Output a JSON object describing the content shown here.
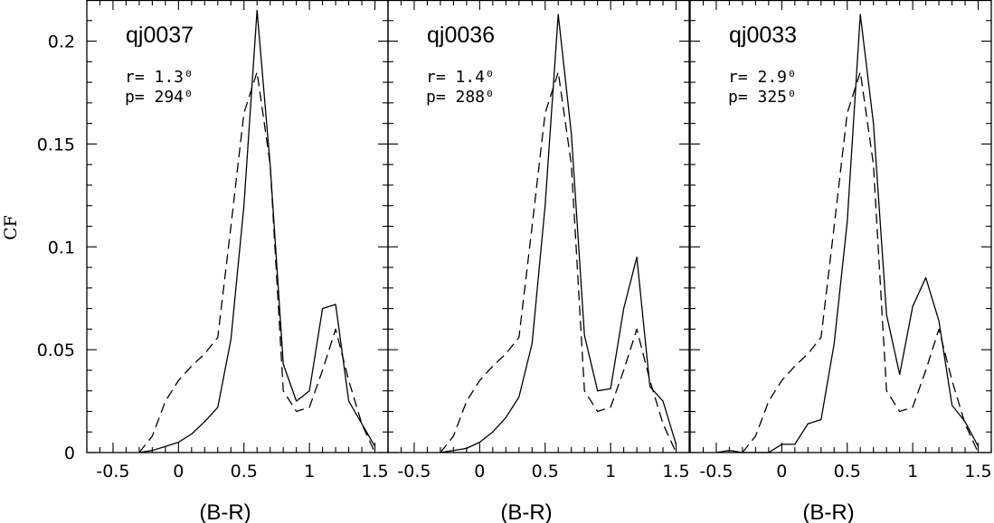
{
  "figure": {
    "ylabel": "CF",
    "xlabel": "(B-R)"
  },
  "chart_data": [
    {
      "type": "line",
      "title": "qj0037",
      "annotations": [
        "r= 1.3⁰",
        "p= 294⁰"
      ],
      "xlabel": "(B-R)",
      "ylabel": "CF",
      "xlim": [
        -0.7,
        1.6
      ],
      "ylim": [
        0,
        0.22
      ],
      "xticks": [
        "-0.5",
        "0",
        "0.5",
        "1",
        "1.5"
      ],
      "yticks": [
        "0",
        "0.05",
        "0.1",
        "0.15",
        "0.2"
      ],
      "series": [
        {
          "style": "solid",
          "x": [
            -0.3,
            -0.2,
            -0.1,
            0.0,
            0.1,
            0.2,
            0.3,
            0.4,
            0.5,
            0.6,
            0.7,
            0.8,
            0.9,
            1.0,
            1.1,
            1.2,
            1.3,
            1.4,
            1.5
          ],
          "y": [
            0.0,
            0.001,
            0.003,
            0.005,
            0.009,
            0.015,
            0.022,
            0.055,
            0.12,
            0.215,
            0.14,
            0.043,
            0.025,
            0.03,
            0.07,
            0.072,
            0.025,
            0.014,
            0.003
          ]
        },
        {
          "style": "dashed",
          "x": [
            -0.3,
            -0.2,
            -0.1,
            0.0,
            0.1,
            0.2,
            0.3,
            0.4,
            0.5,
            0.6,
            0.7,
            0.8,
            0.9,
            1.0,
            1.1,
            1.2,
            1.3,
            1.4,
            1.5
          ],
          "y": [
            0.0,
            0.008,
            0.025,
            0.035,
            0.042,
            0.048,
            0.056,
            0.11,
            0.165,
            0.185,
            0.14,
            0.03,
            0.02,
            0.022,
            0.04,
            0.06,
            0.035,
            0.014,
            0.0
          ]
        }
      ]
    },
    {
      "type": "line",
      "title": "qj0036",
      "annotations": [
        "r= 1.4⁰",
        "p= 288⁰"
      ],
      "xlabel": "(B-R)",
      "ylabel": "CF",
      "xlim": [
        -0.7,
        1.6
      ],
      "ylim": [
        0,
        0.22
      ],
      "xticks": [
        "-0.5",
        "0",
        "0.5",
        "1",
        "1.5"
      ],
      "yticks": [
        "0",
        "0.05",
        "0.1",
        "0.15",
        "0.2"
      ],
      "series": [
        {
          "style": "solid",
          "x": [
            -0.3,
            -0.2,
            -0.1,
            0.0,
            0.1,
            0.2,
            0.3,
            0.4,
            0.5,
            0.6,
            0.7,
            0.8,
            0.9,
            1.0,
            1.1,
            1.2,
            1.3,
            1.4,
            1.5
          ],
          "y": [
            0.0,
            0.001,
            0.002,
            0.005,
            0.01,
            0.017,
            0.027,
            0.053,
            0.12,
            0.213,
            0.155,
            0.057,
            0.03,
            0.031,
            0.07,
            0.095,
            0.032,
            0.025,
            0.004
          ]
        },
        {
          "style": "dashed",
          "x": [
            -0.3,
            -0.2,
            -0.1,
            0.0,
            0.1,
            0.2,
            0.3,
            0.4,
            0.5,
            0.6,
            0.7,
            0.8,
            0.9,
            1.0,
            1.1,
            1.2,
            1.3,
            1.4,
            1.5
          ],
          "y": [
            0.0,
            0.008,
            0.025,
            0.035,
            0.042,
            0.048,
            0.056,
            0.11,
            0.165,
            0.185,
            0.14,
            0.03,
            0.02,
            0.022,
            0.04,
            0.06,
            0.035,
            0.014,
            0.0
          ]
        }
      ]
    },
    {
      "type": "line",
      "title": "qj0033",
      "annotations": [
        "r= 2.9⁰",
        "p= 325⁰"
      ],
      "xlabel": "(B-R)",
      "ylabel": "CF",
      "xlim": [
        -0.7,
        1.6
      ],
      "ylim": [
        0,
        0.22
      ],
      "xticks": [
        "-0.5",
        "0",
        "0.5",
        "1",
        "1.5"
      ],
      "yticks": [
        "0",
        "0.05",
        "0.1",
        "0.15",
        "0.2"
      ],
      "series": [
        {
          "style": "solid",
          "x": [
            -0.5,
            -0.4,
            -0.3,
            -0.2,
            -0.1,
            0.0,
            0.1,
            0.2,
            0.3,
            0.4,
            0.5,
            0.6,
            0.7,
            0.8,
            0.9,
            1.0,
            1.1,
            1.2,
            1.3,
            1.4,
            1.5
          ],
          "y": [
            0.0,
            0.001,
            0.0,
            0.0,
            0.0,
            0.004,
            0.004,
            0.014,
            0.016,
            0.053,
            0.112,
            0.213,
            0.16,
            0.067,
            0.038,
            0.071,
            0.085,
            0.064,
            0.023,
            0.015,
            0.003
          ]
        },
        {
          "style": "dashed",
          "x": [
            -0.3,
            -0.2,
            -0.1,
            0.0,
            0.1,
            0.2,
            0.3,
            0.4,
            0.5,
            0.6,
            0.7,
            0.8,
            0.9,
            1.0,
            1.1,
            1.2,
            1.3,
            1.4,
            1.5
          ],
          "y": [
            0.0,
            0.008,
            0.025,
            0.035,
            0.042,
            0.048,
            0.056,
            0.11,
            0.165,
            0.185,
            0.14,
            0.03,
            0.02,
            0.022,
            0.04,
            0.06,
            0.035,
            0.014,
            0.0
          ]
        }
      ]
    }
  ]
}
